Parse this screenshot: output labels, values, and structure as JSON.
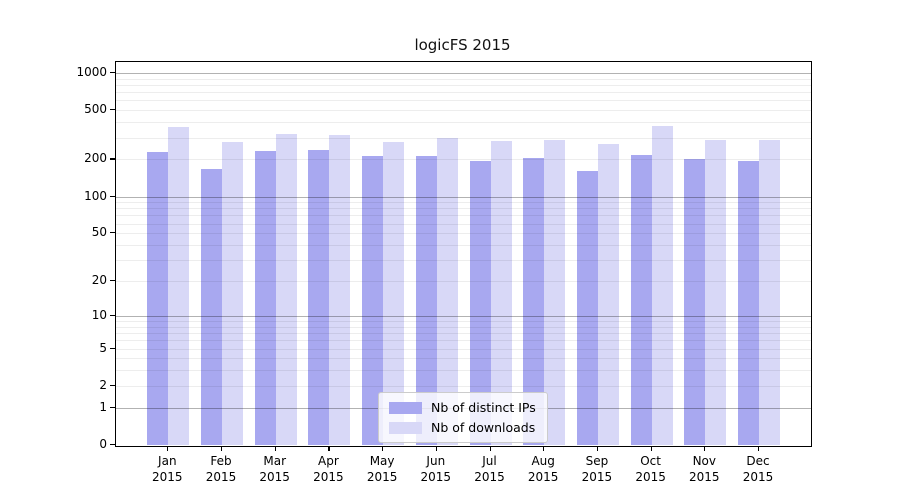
{
  "chart_data": {
    "type": "bar",
    "title": "logicFS 2015",
    "categories": [
      "Jan",
      "Feb",
      "Mar",
      "Apr",
      "May",
      "Jun",
      "Jul",
      "Aug",
      "Sep",
      "Oct",
      "Nov",
      "Dec"
    ],
    "category_year": "2015",
    "series": [
      {
        "name": "Nb of distinct IPs",
        "color": "#a8a8f0",
        "values": [
          230,
          167,
          235,
          240,
          215,
          214,
          196,
          204,
          160,
          218,
          203,
          193
        ]
      },
      {
        "name": "Nb of downloads",
        "color": "#d8d8f7",
        "values": [
          368,
          275,
          320,
          316,
          276,
          296,
          280,
          287,
          266,
          372,
          286,
          290
        ]
      }
    ],
    "y_ticks": [
      0,
      1,
      2,
      5,
      10,
      20,
      50,
      100,
      200,
      500,
      1000
    ],
    "y_scale": "log10(1+v)",
    "ylim": [
      0,
      1300
    ],
    "grid": true,
    "legend_position": "lower-center",
    "colors": {
      "axis": "#000000",
      "major_grid": "#b3b3b3",
      "minor_grid": "#ececec"
    }
  }
}
